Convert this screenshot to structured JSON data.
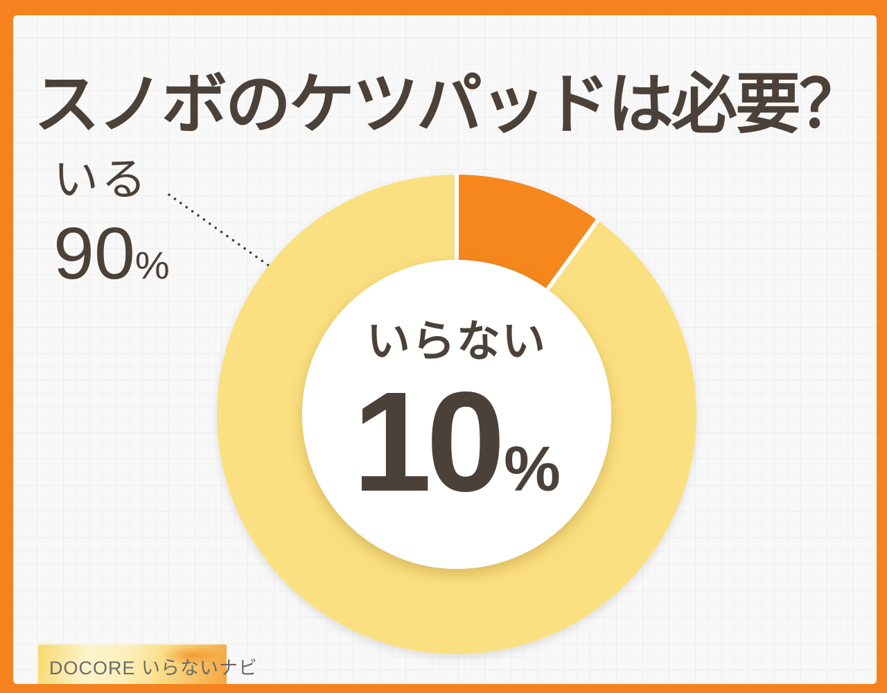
{
  "title": "スノボのケツパッドは必要？",
  "chart_data": {
    "type": "pie",
    "style": "donut",
    "title": "スノボのケツパッドは必要？",
    "categories": [
      "いる",
      "いらない"
    ],
    "values": [
      90,
      10
    ],
    "unit": "%",
    "segments": [
      {
        "label": "いる",
        "value": 90,
        "color": "#FBE081"
      },
      {
        "label": "いらない",
        "value": 10,
        "color": "#F6871D"
      }
    ],
    "start_angle_deg": 36,
    "direction": "clockwise",
    "donut_hole_ratio": 0.64,
    "gap_color": "#FFFFFF",
    "legend_position": "none",
    "labels": {
      "outer": {
        "text": "いる",
        "value": "90",
        "unit": "%"
      },
      "center": {
        "text": "いらない",
        "value": "10",
        "unit": "%"
      }
    }
  },
  "footer": {
    "logo_text": "DOCORE いらないナビ"
  },
  "colors": {
    "frame": "#F5821E",
    "background": "#F8F8F8",
    "grid_line": "#EDEDED",
    "text_dark": "#4B4138",
    "segment_yellow": "#FBE081",
    "segment_orange": "#F6871D",
    "hole_fill": "#FFFFFF",
    "logo_text": "#6A6A6A"
  }
}
